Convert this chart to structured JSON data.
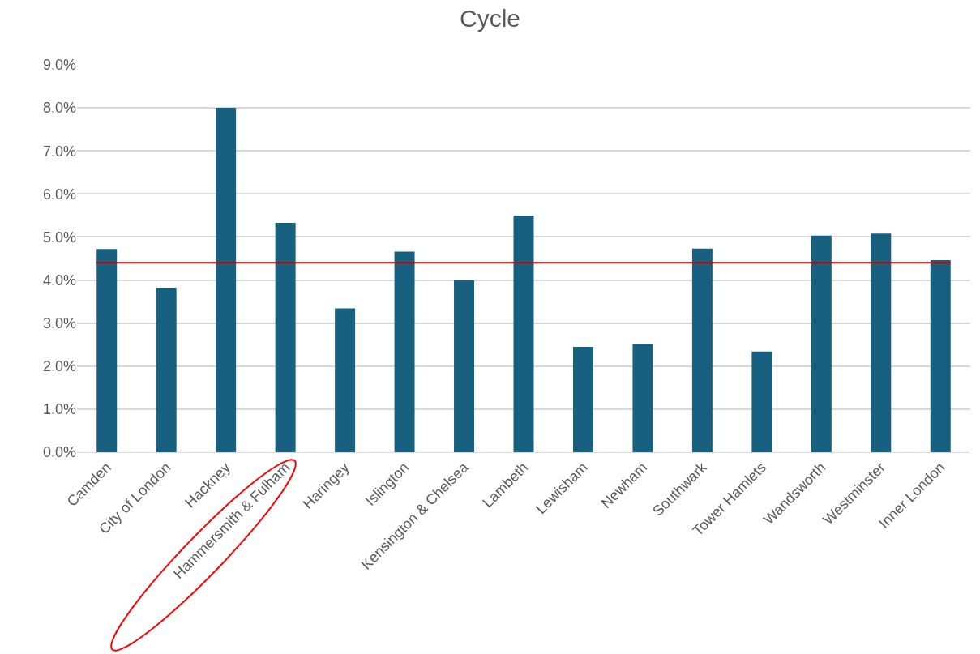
{
  "chart_data": {
    "type": "bar",
    "title": "Cycle",
    "categories": [
      "Camden",
      "City of London",
      "Hackney",
      "Hammersmith & Fulham",
      "Haringey",
      "Islington",
      "Kensington & Chelsea",
      "Lambeth",
      "Lewisham",
      "Newham",
      "Southwark",
      "Tower Hamlets",
      "Wandsworth",
      "Westminster",
      "Inner London"
    ],
    "values": [
      4.72,
      3.82,
      8.0,
      5.33,
      3.34,
      4.66,
      3.99,
      5.5,
      2.45,
      2.52,
      4.73,
      2.34,
      5.03,
      5.08,
      4.46
    ],
    "color": "#17607f",
    "ylim": [
      0,
      9
    ],
    "yticks": [
      {
        "value": 0,
        "label": "0.0%"
      },
      {
        "value": 1,
        "label": "1.0%"
      },
      {
        "value": 2,
        "label": "2.0%"
      },
      {
        "value": 3,
        "label": "3.0%"
      },
      {
        "value": 4,
        "label": "4.0%"
      },
      {
        "value": 5,
        "label": "5.0%"
      },
      {
        "value": 6,
        "label": "6.0%"
      },
      {
        "value": 7,
        "label": "7.0%"
      },
      {
        "value": 8,
        "label": "8.0%"
      },
      {
        "value": 9,
        "label": "9.0%"
      }
    ],
    "grid": "y",
    "ref_lines": [
      {
        "axis": "y",
        "value": 4.4,
        "color": "#c00000"
      }
    ]
  }
}
